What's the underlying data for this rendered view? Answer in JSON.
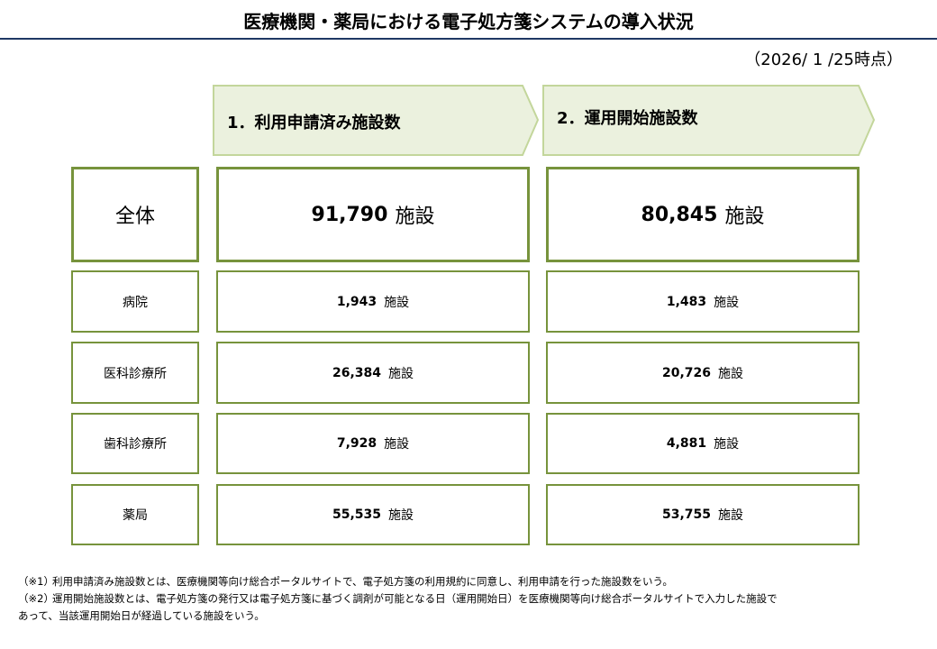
{
  "header": {
    "title": "医療機関・薬局における電子処方箋システムの導入状況",
    "date": "（2026/ 1 /25時点）"
  },
  "columns": [
    "1．利用申請済み施設数",
    "2．運用開始施設数"
  ],
  "unit": "施設",
  "rows": [
    {
      "label": "全体",
      "values": [
        "91,790",
        "80,845"
      ]
    },
    {
      "label": "病院",
      "values": [
        "1,943",
        "1,483"
      ]
    },
    {
      "label": "医科診療所",
      "values": [
        "26,384",
        "20,726"
      ]
    },
    {
      "label": "歯科診療所",
      "values": [
        "7,928",
        "4,881"
      ]
    },
    {
      "label": "薬局",
      "values": [
        "55,535",
        "53,755"
      ]
    }
  ],
  "notes": [
    {
      "marker": "（※1）",
      "lines": [
        "利用申請済み施設数とは、医療機関等向け総合ポータルサイトで、電子処方箋の利用規約に同意し、利用申請を行った施設数をいう。"
      ]
    },
    {
      "marker": "（※2）",
      "lines": [
        "運用開始施設数とは、電子処方箋の発行又は電子処方箋に基づく調剤が可能となる日（運用開始日）を医療機関等向け総合ポータルサイトで入力した施設で",
        "あって、当該運用開始日が経過している施設をいう。"
      ]
    }
  ]
}
